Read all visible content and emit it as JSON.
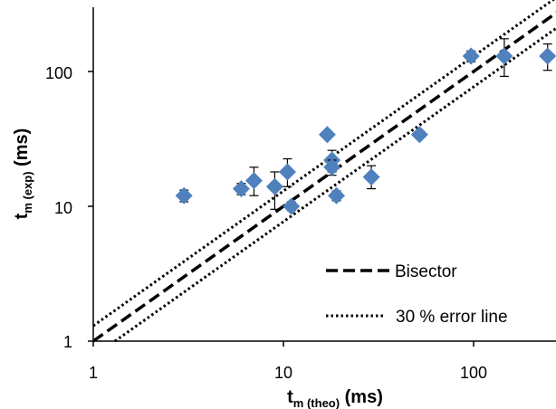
{
  "chart_data": {
    "type": "scatter",
    "x_scale": "log",
    "y_scale": "log",
    "xlim": [
      1,
      250
    ],
    "ylim": [
      1,
      300
    ],
    "x_ticks": [
      "1",
      "10",
      "100"
    ],
    "y_ticks": [
      "1",
      "10",
      "100"
    ],
    "xlabel_main": "t",
    "xlabel_sub": "m (theo)",
    "xlabel_unit": " (ms)",
    "ylabel_main": "t",
    "ylabel_sub": "m (exp)",
    "ylabel_unit": " (ms)",
    "grid": false,
    "legend_position": "bottom-right",
    "legend": {
      "bisector": "Bisector",
      "error_line": "30 % error line"
    },
    "colors": {
      "points": "#4f81bd",
      "lines": "#000000"
    },
    "error_line_factor": 1.3,
    "points": [
      {
        "x": 3.0,
        "y": 12,
        "ylow": 10.8,
        "yhigh": 13.2
      },
      {
        "x": 6.0,
        "y": 13.5,
        "ylow": 12.2,
        "yhigh": 14.8
      },
      {
        "x": 7.0,
        "y": 15.5,
        "ylow": 12,
        "yhigh": 19.5
      },
      {
        "x": 9.0,
        "y": 14,
        "ylow": 9.5,
        "yhigh": 18
      },
      {
        "x": 10.5,
        "y": 18,
        "ylow": 14,
        "yhigh": 22.5
      },
      {
        "x": 11.0,
        "y": 10,
        "ylow": 9.3,
        "yhigh": 10.8
      },
      {
        "x": 17.0,
        "y": 34,
        "ylow": 34,
        "yhigh": 34
      },
      {
        "x": 18.0,
        "y": 22,
        "ylow": 18,
        "yhigh": 26
      },
      {
        "x": 18.0,
        "y": 19.5,
        "ylow": 17,
        "yhigh": 22
      },
      {
        "x": 19.0,
        "y": 12,
        "ylow": 11,
        "yhigh": 13
      },
      {
        "x": 29.0,
        "y": 16.5,
        "ylow": 13.5,
        "yhigh": 20
      },
      {
        "x": 52.0,
        "y": 34,
        "ylow": 34,
        "yhigh": 34
      },
      {
        "x": 97.0,
        "y": 130,
        "ylow": 118,
        "yhigh": 142
      },
      {
        "x": 145.0,
        "y": 130,
        "ylow": 92,
        "yhigh": 175
      },
      {
        "x": 245.0,
        "y": 130,
        "ylow": 102,
        "yhigh": 160
      }
    ]
  }
}
